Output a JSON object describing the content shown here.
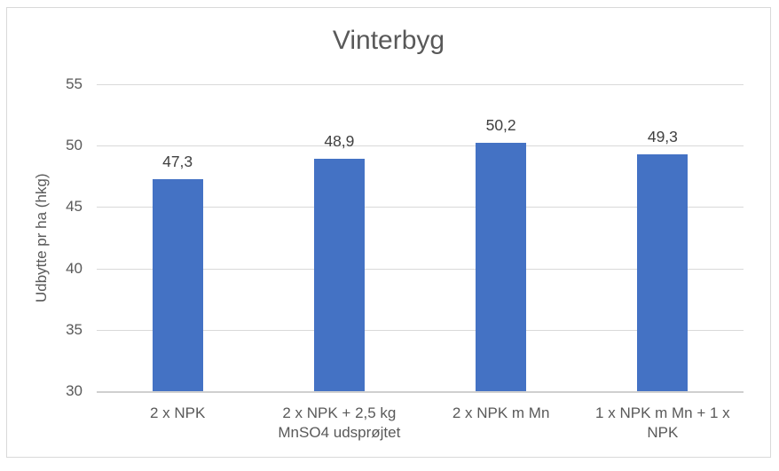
{
  "chart_data": {
    "type": "bar",
    "title": "Vinterbyg",
    "xlabel": "",
    "ylabel": "Udbytte pr ha (hkg)",
    "categories": [
      "2 x NPK",
      "2 x NPK + 2,5 kg MnSO4 udsprøjtet",
      "2 x NPK m Mn",
      "1 x NPK m Mn + 1 x NPK"
    ],
    "values": [
      47.3,
      48.9,
      50.2,
      49.3
    ],
    "value_labels": [
      "47,3",
      "48,9",
      "50,2",
      "49,3"
    ],
    "yticks": [
      30,
      35,
      40,
      45,
      50,
      55
    ],
    "ytick_labels": [
      "30",
      "35",
      "40",
      "45",
      "50",
      "55"
    ],
    "ylim": [
      30,
      55
    ],
    "grid": "horizontal",
    "legend_position": "none",
    "decimal_separator": ",",
    "bar_color": "#4472C4",
    "gridline_color": "#D9D9D9",
    "axis_line_color": "#CFCFCF",
    "frame_border_color": "#D9D9D9",
    "title_color": "#595959",
    "axis_text_color": "#595959",
    "data_label_color": "#404040"
  }
}
